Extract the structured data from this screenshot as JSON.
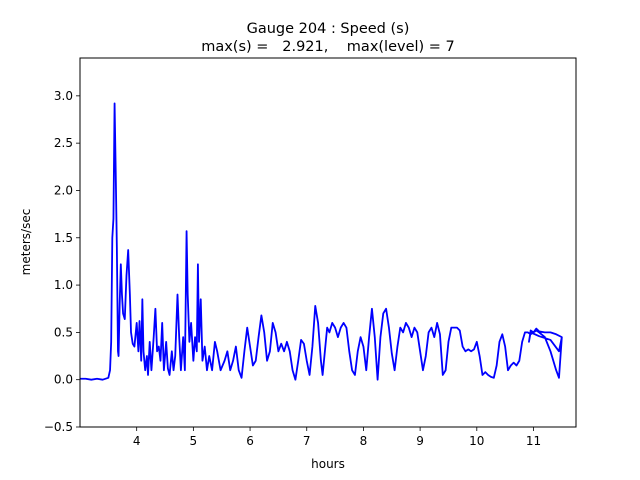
{
  "chart_data": {
    "type": "line",
    "title_line1": "Gauge 204 : Speed (s)",
    "title_line2": "max(s) =   2.921,    max(level) = 7",
    "xlabel": "hours",
    "ylabel": "meters/sec",
    "xlim": [
      3.0,
      11.75
    ],
    "ylim": [
      -0.5,
      3.4
    ],
    "xticks": [
      4,
      5,
      6,
      7,
      8,
      9,
      10,
      11
    ],
    "yticks": [
      -0.5,
      0.0,
      0.5,
      1.0,
      1.5,
      2.0,
      2.5,
      3.0
    ],
    "ytick_labels": [
      "−0.5",
      "0.0",
      "0.5",
      "1.0",
      "1.5",
      "2.0",
      "2.5",
      "3.0"
    ],
    "grid": false,
    "line_color": "#0000ff",
    "series": [
      {
        "points": [
          [
            3.0,
            0.01
          ],
          [
            3.1,
            0.01
          ],
          [
            3.2,
            0.0
          ],
          [
            3.3,
            0.01
          ],
          [
            3.4,
            0.0
          ],
          [
            3.5,
            0.02
          ],
          [
            3.53,
            0.1
          ],
          [
            3.55,
            0.4
          ],
          [
            3.57,
            1.5
          ],
          [
            3.59,
            1.7
          ],
          [
            3.61,
            2.92
          ],
          [
            3.63,
            2.2
          ],
          [
            3.65,
            1.4
          ],
          [
            3.67,
            0.3
          ],
          [
            3.68,
            0.25
          ],
          [
            3.7,
            0.8
          ],
          [
            3.72,
            1.22
          ],
          [
            3.74,
            0.9
          ],
          [
            3.76,
            0.7
          ],
          [
            3.79,
            0.64
          ],
          [
            3.82,
            1.1
          ],
          [
            3.85,
            1.37
          ],
          [
            3.88,
            0.9
          ],
          [
            3.9,
            0.5
          ],
          [
            3.93,
            0.38
          ],
          [
            3.96,
            0.35
          ],
          [
            4.0,
            0.6
          ],
          [
            4.03,
            0.3
          ],
          [
            4.05,
            0.62
          ],
          [
            4.08,
            0.2
          ],
          [
            4.1,
            0.85
          ],
          [
            4.12,
            0.3
          ],
          [
            4.15,
            0.1
          ],
          [
            4.18,
            0.25
          ],
          [
            4.2,
            0.05
          ],
          [
            4.23,
            0.4
          ],
          [
            4.26,
            0.1
          ],
          [
            4.3,
            0.45
          ],
          [
            4.33,
            0.75
          ],
          [
            4.36,
            0.3
          ],
          [
            4.39,
            0.35
          ],
          [
            4.42,
            0.2
          ],
          [
            4.45,
            0.6
          ],
          [
            4.48,
            0.1
          ],
          [
            4.52,
            0.4
          ],
          [
            4.55,
            0.12
          ],
          [
            4.58,
            0.05
          ],
          [
            4.62,
            0.3
          ],
          [
            4.65,
            0.1
          ],
          [
            4.68,
            0.25
          ],
          [
            4.72,
            0.9
          ],
          [
            4.75,
            0.45
          ],
          [
            4.78,
            0.1
          ],
          [
            4.82,
            0.45
          ],
          [
            4.85,
            0.1
          ],
          [
            4.88,
            1.57
          ],
          [
            4.9,
            0.9
          ],
          [
            4.93,
            0.4
          ],
          [
            4.96,
            0.6
          ],
          [
            5.0,
            0.2
          ],
          [
            5.03,
            0.45
          ],
          [
            5.06,
            0.3
          ],
          [
            5.08,
            1.22
          ],
          [
            5.1,
            0.4
          ],
          [
            5.13,
            0.85
          ],
          [
            5.16,
            0.2
          ],
          [
            5.2,
            0.35
          ],
          [
            5.24,
            0.1
          ],
          [
            5.28,
            0.25
          ],
          [
            5.33,
            0.1
          ],
          [
            5.38,
            0.4
          ],
          [
            5.42,
            0.3
          ],
          [
            5.48,
            0.1
          ],
          [
            5.55,
            0.2
          ],
          [
            5.6,
            0.3
          ],
          [
            5.65,
            0.1
          ],
          [
            5.7,
            0.2
          ],
          [
            5.75,
            0.35
          ],
          [
            5.8,
            0.1
          ],
          [
            5.85,
            0.02
          ],
          [
            5.9,
            0.3
          ],
          [
            5.95,
            0.55
          ],
          [
            6.0,
            0.35
          ],
          [
            6.05,
            0.15
          ],
          [
            6.1,
            0.2
          ],
          [
            6.15,
            0.45
          ],
          [
            6.2,
            0.68
          ],
          [
            6.25,
            0.5
          ],
          [
            6.3,
            0.2
          ],
          [
            6.35,
            0.3
          ],
          [
            6.4,
            0.6
          ],
          [
            6.45,
            0.5
          ],
          [
            6.5,
            0.3
          ],
          [
            6.55,
            0.38
          ],
          [
            6.6,
            0.3
          ],
          [
            6.65,
            0.4
          ],
          [
            6.7,
            0.3
          ],
          [
            6.75,
            0.1
          ],
          [
            6.8,
            0.0
          ],
          [
            6.85,
            0.2
          ],
          [
            6.9,
            0.42
          ],
          [
            6.95,
            0.38
          ],
          [
            7.0,
            0.2
          ],
          [
            7.05,
            0.05
          ],
          [
            7.1,
            0.35
          ],
          [
            7.15,
            0.78
          ],
          [
            7.2,
            0.6
          ],
          [
            7.25,
            0.2
          ],
          [
            7.28,
            0.05
          ],
          [
            7.32,
            0.3
          ],
          [
            7.36,
            0.55
          ],
          [
            7.4,
            0.5
          ],
          [
            7.45,
            0.6
          ],
          [
            7.5,
            0.55
          ],
          [
            7.55,
            0.45
          ],
          [
            7.6,
            0.55
          ],
          [
            7.65,
            0.6
          ],
          [
            7.7,
            0.55
          ],
          [
            7.75,
            0.3
          ],
          [
            7.8,
            0.1
          ],
          [
            7.85,
            0.05
          ],
          [
            7.9,
            0.3
          ],
          [
            7.95,
            0.45
          ],
          [
            8.0,
            0.35
          ],
          [
            8.05,
            0.1
          ],
          [
            8.1,
            0.45
          ],
          [
            8.15,
            0.75
          ],
          [
            8.2,
            0.45
          ],
          [
            8.25,
            0.0
          ],
          [
            8.3,
            0.45
          ],
          [
            8.35,
            0.7
          ],
          [
            8.4,
            0.75
          ],
          [
            8.45,
            0.55
          ],
          [
            8.5,
            0.28
          ],
          [
            8.55,
            0.1
          ],
          [
            8.6,
            0.35
          ],
          [
            8.65,
            0.55
          ],
          [
            8.7,
            0.5
          ],
          [
            8.75,
            0.6
          ],
          [
            8.8,
            0.55
          ],
          [
            8.85,
            0.45
          ],
          [
            8.9,
            0.55
          ],
          [
            8.95,
            0.5
          ],
          [
            9.0,
            0.3
          ],
          [
            9.05,
            0.1
          ],
          [
            9.1,
            0.25
          ],
          [
            9.15,
            0.5
          ],
          [
            9.2,
            0.55
          ],
          [
            9.25,
            0.45
          ],
          [
            9.3,
            0.6
          ],
          [
            9.35,
            0.48
          ],
          [
            9.4,
            0.05
          ],
          [
            9.45,
            0.1
          ],
          [
            9.5,
            0.4
          ],
          [
            9.55,
            0.55
          ],
          [
            9.6,
            0.55
          ],
          [
            9.65,
            0.55
          ],
          [
            9.7,
            0.52
          ],
          [
            9.75,
            0.35
          ],
          [
            9.8,
            0.3
          ],
          [
            9.85,
            0.32
          ],
          [
            9.9,
            0.3
          ],
          [
            9.95,
            0.32
          ],
          [
            10.0,
            0.4
          ],
          [
            10.05,
            0.25
          ],
          [
            10.1,
            0.05
          ],
          [
            10.15,
            0.08
          ],
          [
            10.2,
            0.05
          ],
          [
            10.25,
            0.03
          ],
          [
            10.3,
            0.02
          ],
          [
            10.35,
            0.15
          ],
          [
            10.4,
            0.4
          ],
          [
            10.45,
            0.48
          ],
          [
            10.5,
            0.35
          ],
          [
            10.55,
            0.1
          ],
          [
            10.6,
            0.15
          ],
          [
            10.65,
            0.18
          ],
          [
            10.7,
            0.15
          ],
          [
            10.75,
            0.2
          ],
          [
            10.8,
            0.4
          ],
          [
            10.85,
            0.5
          ],
          [
            10.9,
            0.5
          ],
          [
            10.95,
            0.48
          ],
          [
            11.0,
            0.5
          ],
          [
            11.05,
            0.52
          ],
          [
            11.1,
            0.5
          ],
          [
            11.2,
            0.45
          ],
          [
            11.3,
            0.3
          ],
          [
            11.4,
            0.1
          ],
          [
            11.45,
            0.02
          ],
          [
            11.5,
            0.45
          ],
          [
            11.4,
            0.48
          ],
          [
            11.3,
            0.5
          ],
          [
            11.2,
            0.5
          ],
          [
            11.1,
            0.51
          ],
          [
            11.05,
            0.54
          ],
          [
            11.0,
            0.5
          ],
          [
            10.95,
            0.52
          ],
          [
            10.92,
            0.4
          ],
          [
            10.95,
            0.5
          ],
          [
            11.1,
            0.46
          ],
          [
            11.3,
            0.42
          ],
          [
            11.45,
            0.3
          ],
          [
            11.5,
            0.45
          ]
        ]
      }
    ]
  }
}
